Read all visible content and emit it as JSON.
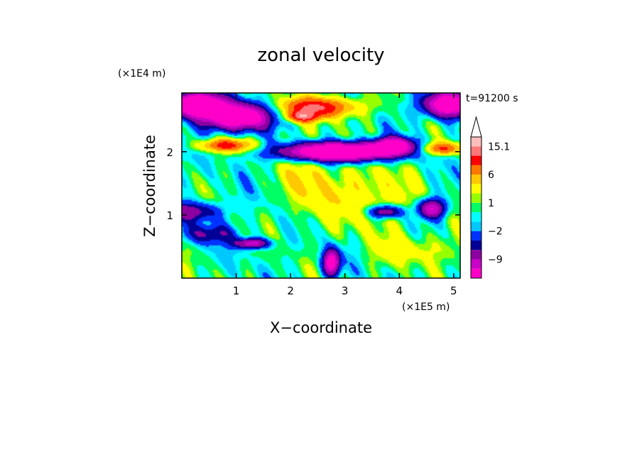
{
  "chart_data": {
    "type": "heatmap",
    "title": "zonal velocity",
    "xlabel": "X−coordinate",
    "ylabel": "Z−coordinate",
    "x_unit": "(×1E5 m)",
    "y_unit": "(×1E4 m)",
    "time_label": "t=91200 s",
    "xlim": [
      0,
      5.12
    ],
    "ylim": [
      0,
      2.93
    ],
    "x_ticks": [
      1,
      2,
      3,
      4,
      5
    ],
    "y_ticks": [
      1,
      2
    ],
    "colorbar": {
      "levels": [
        -15.1,
        -12,
        -9,
        -6,
        -4,
        -2,
        -1,
        0,
        1,
        2,
        4,
        6,
        9,
        12,
        15.1,
        18
      ],
      "colors": [
        "#ff00c8",
        "#c800c8",
        "#8c00a0",
        "#000096",
        "#0032ff",
        "#00c8ff",
        "#00ffff",
        "#00ff64",
        "#96ff00",
        "#ffff00",
        "#ffc800",
        "#ff7800",
        "#ff0000",
        "#ff7878",
        "#ffbebe"
      ],
      "labels": [
        {
          "text": "15.1",
          "value": 15.1
        },
        {
          "text": "6",
          "value": 6
        },
        {
          "text": "1",
          "value": 1
        },
        {
          "text": "−2",
          "value": -2
        },
        {
          "text": "−9",
          "value": -9
        }
      ]
    }
  }
}
